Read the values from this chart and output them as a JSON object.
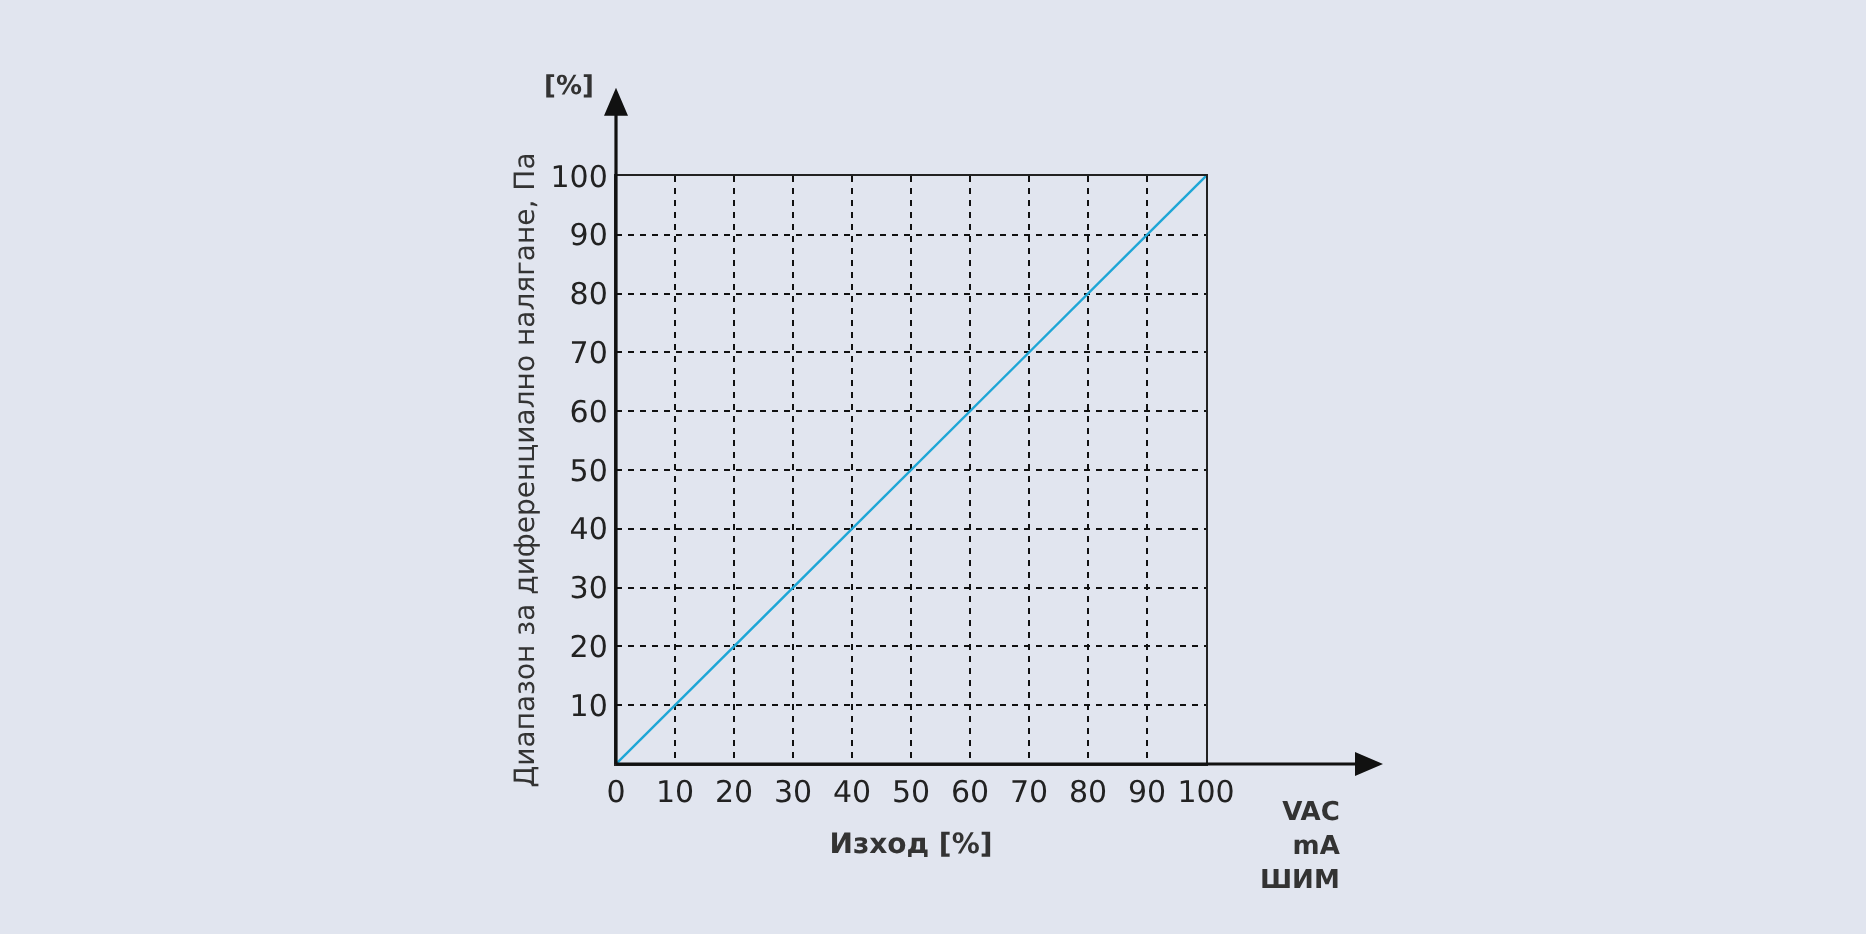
{
  "chart_data": {
    "type": "line",
    "xlabel": "Изход [%]",
    "ylabel": "Диапазон за диференциално налягане, Па",
    "annotations": [
      "[%]",
      "VAC\nmA\nШИМ"
    ],
    "x": [
      0,
      100
    ],
    "series": [
      {
        "color": "#1ea6d6",
        "values": [
          0,
          100
        ]
      }
    ],
    "xlim": [
      0,
      100
    ],
    "ylim": [
      0,
      100
    ],
    "xticks": [
      0,
      10,
      20,
      30,
      40,
      50,
      60,
      70,
      80,
      90,
      100
    ],
    "yticks": [
      10,
      20,
      30,
      40,
      50,
      60,
      70,
      80,
      90,
      100
    ],
    "grid": true,
    "marker": "none",
    "line_style": "solid"
  }
}
